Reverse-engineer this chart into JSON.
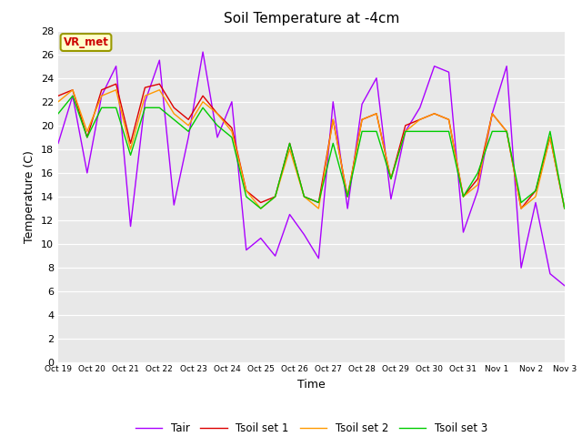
{
  "title": "Soil Temperature at -4cm",
  "xlabel": "Time",
  "ylabel": "Temperature (C)",
  "ylim": [
    0,
    28
  ],
  "annotation": "VR_met",
  "fig_facecolor": "#ffffff",
  "ax_facecolor": "#e8e8e8",
  "line_colors": {
    "Tair": "#aa00ff",
    "Tsoil set 1": "#dd0000",
    "Tsoil set 2": "#ff9900",
    "Tsoil set 3": "#00cc00"
  },
  "xtick_labels": [
    "Oct 19",
    "Oct 20",
    "Oct 21",
    "Oct 22",
    "Oct 23",
    "Oct 24",
    "Oct 25",
    "Oct 26",
    "Oct 27",
    "Oct 28",
    "Oct 29",
    "Oct 30",
    "Oct 31",
    "Nov 1",
    "Nov 2",
    "Nov 3"
  ],
  "Tair": [
    18.5,
    22.5,
    16.0,
    22.5,
    25.0,
    11.5,
    22.0,
    25.5,
    13.3,
    19.0,
    26.2,
    19.0,
    22.0,
    9.5,
    10.5,
    9.0,
    12.5,
    10.8,
    8.8,
    22.0,
    13.0,
    21.8,
    24.0,
    13.8,
    19.5,
    21.5,
    25.0,
    24.5,
    11.0,
    14.5,
    21.0,
    25.0,
    8.0,
    13.5,
    7.5,
    6.5
  ],
  "Tsoil1": [
    22.5,
    23.0,
    19.0,
    23.0,
    23.5,
    18.5,
    23.2,
    23.5,
    21.5,
    20.5,
    22.5,
    21.0,
    19.8,
    14.5,
    13.5,
    14.0,
    18.5,
    14.0,
    13.5,
    20.5,
    14.0,
    20.5,
    21.0,
    15.5,
    20.0,
    20.5,
    21.0,
    20.5,
    14.0,
    15.5,
    21.0,
    19.5,
    13.0,
    14.5,
    19.0,
    13.0
  ],
  "Tsoil2": [
    22.0,
    23.0,
    19.5,
    22.5,
    23.0,
    18.0,
    22.5,
    23.0,
    21.0,
    20.0,
    22.0,
    21.0,
    19.5,
    14.5,
    13.0,
    14.0,
    18.0,
    14.0,
    13.0,
    20.5,
    14.0,
    20.5,
    21.0,
    15.5,
    19.5,
    20.5,
    21.0,
    20.5,
    14.0,
    15.0,
    21.0,
    19.5,
    13.0,
    14.0,
    19.0,
    13.0
  ],
  "Tsoil3": [
    21.0,
    22.5,
    19.0,
    21.5,
    21.5,
    17.5,
    21.5,
    21.5,
    20.5,
    19.5,
    21.5,
    20.0,
    19.0,
    14.0,
    13.0,
    14.0,
    18.5,
    14.0,
    13.5,
    18.5,
    14.0,
    19.5,
    19.5,
    15.5,
    19.5,
    19.5,
    19.5,
    19.5,
    14.0,
    16.0,
    19.5,
    19.5,
    13.5,
    14.5,
    19.5,
    13.0
  ]
}
